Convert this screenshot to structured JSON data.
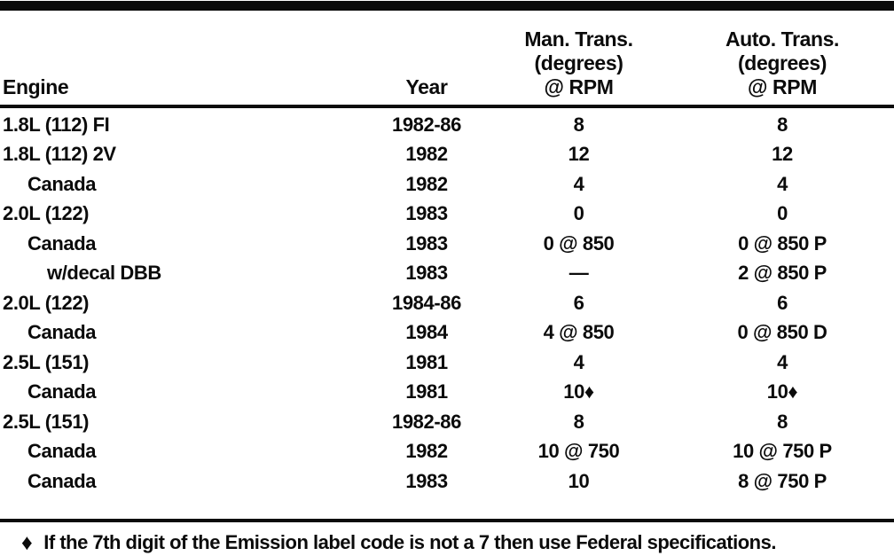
{
  "table": {
    "headers": {
      "engine": "Engine",
      "year": "Year",
      "man_trans": [
        "Man. Trans.",
        "(degrees)",
        "@ RPM"
      ],
      "auto_trans": [
        "Auto. Trans.",
        "(degrees)",
        "@ RPM"
      ]
    },
    "rows": [
      {
        "engine": "1.8L (112) FI",
        "indent": 0,
        "year": "1982-86",
        "man": "8",
        "auto": "8"
      },
      {
        "engine": "1.8L (112) 2V",
        "indent": 0,
        "year": "1982",
        "man": "12",
        "auto": "12"
      },
      {
        "engine": "Canada",
        "indent": 1,
        "year": "1982",
        "man": "4",
        "auto": "4"
      },
      {
        "engine": "2.0L (122)",
        "indent": 0,
        "year": "1983",
        "man": "0",
        "auto": "0"
      },
      {
        "engine": "Canada",
        "indent": 1,
        "year": "1983",
        "man": "0 @ 850",
        "auto": "0 @ 850 P"
      },
      {
        "engine": "w/decal DBB",
        "indent": 2,
        "year": "1983",
        "man": "—",
        "auto": "2 @ 850 P"
      },
      {
        "engine": "2.0L (122)",
        "indent": 0,
        "year": "1984-86",
        "man": "6",
        "auto": "6"
      },
      {
        "engine": "Canada",
        "indent": 1,
        "year": "1984",
        "man": "4 @ 850",
        "auto": "0 @ 850 D"
      },
      {
        "engine": "2.5L (151)",
        "indent": 0,
        "year": "1981",
        "man": "4",
        "auto": "4"
      },
      {
        "engine": "Canada",
        "indent": 1,
        "year": "1981",
        "man": "10♦",
        "auto": "10♦"
      },
      {
        "engine": "2.5L (151)",
        "indent": 0,
        "year": "1982-86",
        "man": "8",
        "auto": "8"
      },
      {
        "engine": "Canada",
        "indent": 1,
        "year": "1982",
        "man": "10 @ 750",
        "auto": "10 @ 750 P"
      },
      {
        "engine": "Canada",
        "indent": 1,
        "year": "1983",
        "man": "10",
        "auto": "8 @ 750 P"
      }
    ]
  },
  "footnote": {
    "symbol": "♦",
    "text": "If the 7th digit of the Emission label code is not a 7 then use Federal specifications."
  },
  "colors": {
    "ink": "#0b0b0b",
    "paper": "#ffffff"
  }
}
